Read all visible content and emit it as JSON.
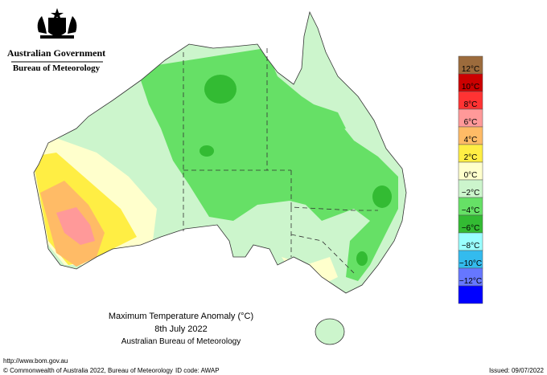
{
  "header": {
    "title": "Australian Government",
    "subtitle": "Bureau of Meteorology"
  },
  "caption": {
    "title": "Maximum Temperature Anomaly (°C)",
    "date": "8th July 2022",
    "source": "Australian Bureau of Meteorology"
  },
  "legend": {
    "colors": [
      "#9c6b3c",
      "#cc0000",
      "#ff3333",
      "#ff9999",
      "#ffbb66",
      "#ffee44",
      "#ffffcc",
      "#ccf5cc",
      "#66e066",
      "#33bb33",
      "#99ffff",
      "#33bbee",
      "#6677ff",
      "#0000ff"
    ],
    "labels": [
      "12°C",
      "10°C",
      "8°C",
      "6°C",
      "4°C",
      "2°C",
      "0°C",
      "−2°C",
      "−4°C",
      "−6°C",
      "−8°C",
      "−10°C",
      "−12°C"
    ]
  },
  "footer": {
    "url": "http://www.bom.gov.au",
    "copyright": "© Commonwealth of Australia 2022, Bureau of Meteorology",
    "id_code": "ID code: AWAP",
    "issued": "Issued: 09/07/2022"
  }
}
